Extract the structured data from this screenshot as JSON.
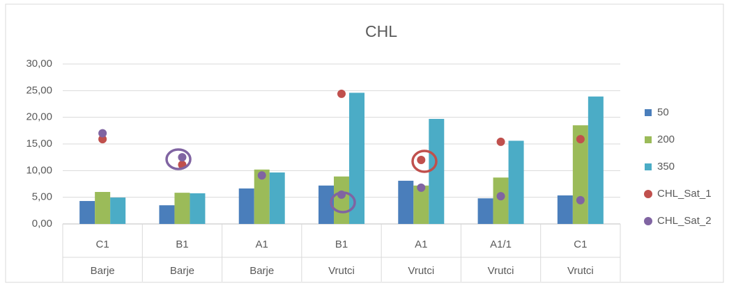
{
  "chart_data": {
    "type": "bar",
    "title": "CHL",
    "categories": [
      "C1",
      "B1",
      "A1",
      "B1",
      "A1",
      "A1/1",
      "C1"
    ],
    "category_groups": [
      "Barje",
      "Barje",
      "Barje",
      "Vrutci",
      "Vrutci",
      "Vrutci",
      "Vrutci"
    ],
    "series": [
      {
        "name": "50",
        "kind": "bar",
        "color": "#4a7ebb",
        "values": [
          4.3,
          3.5,
          6.65,
          7.2,
          8.1,
          4.8,
          5.35
        ]
      },
      {
        "name": "200",
        "kind": "bar",
        "color": "#9bbb59",
        "values": [
          6.0,
          5.85,
          10.2,
          8.9,
          7.2,
          8.7,
          18.5
        ]
      },
      {
        "name": "350",
        "kind": "bar",
        "color": "#4bacc6",
        "values": [
          4.95,
          5.75,
          9.65,
          24.6,
          19.7,
          15.6,
          23.9
        ]
      },
      {
        "name": "CHL_Sat_1",
        "kind": "marker",
        "color": "#c0504d",
        "values": [
          15.9,
          11.1,
          null,
          24.4,
          12.0,
          15.4,
          15.9
        ]
      },
      {
        "name": "CHL_Sat_2",
        "kind": "marker",
        "color": "#8064a2",
        "values": [
          17.0,
          12.5,
          9.1,
          5.5,
          6.8,
          5.2,
          4.45
        ]
      }
    ],
    "ylim": [
      0,
      30
    ],
    "yticks": [
      {
        "value": 0,
        "label": "0,00"
      },
      {
        "value": 5,
        "label": "5,00"
      },
      {
        "value": 10,
        "label": "10,00"
      },
      {
        "value": 15,
        "label": "15,00"
      },
      {
        "value": 20,
        "label": "20,00"
      },
      {
        "value": 25,
        "label": "25,00"
      },
      {
        "value": 30,
        "label": "30,00"
      }
    ],
    "grid": true,
    "legend": "right"
  }
}
